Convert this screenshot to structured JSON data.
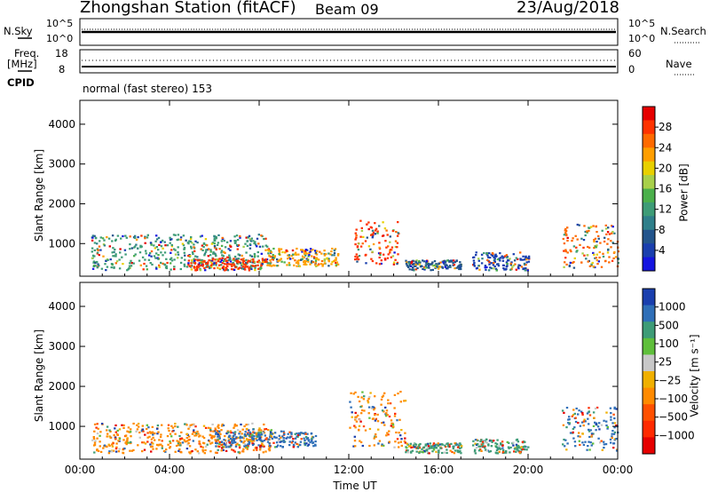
{
  "header": {
    "station": "Zhongshan Station (fitACF)",
    "beam": "Beam 09",
    "date": "23/Aug/2018"
  },
  "top_panels": {
    "nsky_label": "N.Sky",
    "nsky_ticks": [
      "10^5",
      "10^0"
    ],
    "nsearch_label": "N.Search",
    "nsearch_ticks": [
      "10^5",
      "10^0"
    ],
    "freq_label": "Freq.",
    "freq_unit": "[MHz]",
    "freq_ticks": [
      "18",
      "8"
    ],
    "nave_label": "Nave",
    "nave_ticks": [
      "60",
      "0"
    ],
    "cpid_label": "CPID",
    "cpid_text": "normal (fast stereo) 153"
  },
  "chart_data": [
    {
      "type": "heatmap",
      "name": "power",
      "ylabel": "Slant Range [km]",
      "ylim": [
        180,
        4600
      ],
      "yticks": [
        1000,
        2000,
        3000,
        4000
      ],
      "xlim": [
        0,
        24
      ],
      "colorbar": {
        "label": "Power [dB]",
        "ticks": [
          "28",
          "24",
          "20",
          "16",
          "12",
          "8",
          "4"
        ],
        "colors": [
          "#e60000",
          "#ff3300",
          "#ff6a00",
          "#ff9e00",
          "#e8d000",
          "#a8d04a",
          "#4bb04b",
          "#3e9c77",
          "#2f7f8a",
          "#23558c",
          "#1a3fae",
          "#1515e0"
        ]
      },
      "blobs": [
        {
          "t0": 0.5,
          "t1": 8.5,
          "r0": 350,
          "r1": 1250,
          "color": "#3e9c77"
        },
        {
          "t0": 4.8,
          "t1": 8.3,
          "r0": 350,
          "r1": 650,
          "color": "#ff3300"
        },
        {
          "t0": 8.3,
          "t1": 11.5,
          "r0": 450,
          "r1": 900,
          "color": "#ff9e00"
        },
        {
          "t0": 12.2,
          "t1": 14.2,
          "r0": 500,
          "r1": 1600,
          "color": "#ff3300"
        },
        {
          "t0": 14.5,
          "t1": 17.0,
          "r0": 350,
          "r1": 600,
          "color": "#23558c"
        },
        {
          "t0": 17.5,
          "t1": 20.0,
          "r0": 350,
          "r1": 800,
          "color": "#1a3fae"
        },
        {
          "t0": 21.5,
          "t1": 24.0,
          "r0": 400,
          "r1": 1500,
          "color": "#ff6a00"
        }
      ]
    },
    {
      "type": "heatmap",
      "name": "velocity",
      "ylabel": "Slant Range [km]",
      "ylim": [
        180,
        4600
      ],
      "yticks": [
        1000,
        2000,
        3000,
        4000
      ],
      "xlim": [
        0,
        24
      ],
      "xticks": [
        "00:00",
        "04:00",
        "08:00",
        "12:00",
        "16:00",
        "20:00",
        "00:00"
      ],
      "xlabel": "Time UT",
      "colorbar": {
        "label": "Velocity [m s⁻¹]",
        "ticks": [
          "1000",
          "500",
          "100",
          "25",
          "−25",
          "−100",
          "−500",
          "−1000"
        ],
        "colors": [
          "#1a3fae",
          "#2f6fb8",
          "#3e9c77",
          "#5fbf3b",
          "#c8c8c8",
          "#f0b000",
          "#ff8a00",
          "#ff5000",
          "#ff2a00",
          "#e60000"
        ]
      },
      "blobs": [
        {
          "t0": 0.5,
          "t1": 8.5,
          "r0": 350,
          "r1": 1100,
          "color": "#ff8a00"
        },
        {
          "t0": 6.0,
          "t1": 10.5,
          "r0": 500,
          "r1": 900,
          "color": "#2f6fb8"
        },
        {
          "t0": 12.0,
          "t1": 14.5,
          "r0": 500,
          "r1": 1900,
          "color": "#ff8a00"
        },
        {
          "t0": 14.5,
          "t1": 17.0,
          "r0": 350,
          "r1": 600,
          "color": "#3e9c77"
        },
        {
          "t0": 17.5,
          "t1": 20.0,
          "r0": 350,
          "r1": 700,
          "color": "#3e9c77"
        },
        {
          "t0": 21.5,
          "t1": 24.0,
          "r0": 400,
          "r1": 1500,
          "color": "#2f6fb8"
        }
      ]
    }
  ]
}
